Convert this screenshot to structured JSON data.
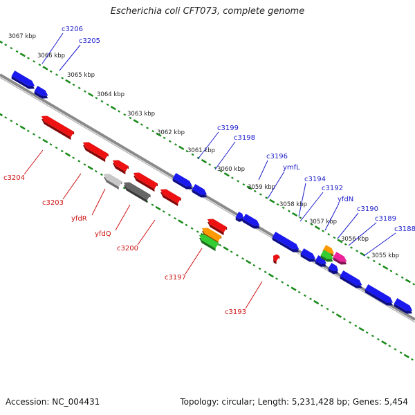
{
  "title": "Escherichia coli CFT073, complete genome",
  "accession_text": "Accession: NC_004431",
  "topology_text": "Topology: circular; Length: 5,231,428 bp; Genes: 5,454",
  "colors": {
    "forward_gene": "#1a1aee",
    "reverse_gene": "#ee1111",
    "backbone": "#8a8a8a",
    "ticks": "#1a8a1a",
    "label_forward": "#1a1acc",
    "label_reverse": "#cc1111"
  },
  "kbp_labels": [
    "3067 kbp",
    "3066 kbp",
    "3065 kbp",
    "3064 kbp",
    "3063 kbp",
    "3062 kbp",
    "3061 kbp",
    "3060 kbp",
    "3059 kbp",
    "3058 kbp",
    "3057 kbp",
    "3056 kbp",
    "3055 kbp"
  ],
  "forward_labels": [
    "c3206",
    "c3205",
    "c3199",
    "c3198",
    "c3196",
    "ymfL",
    "c3194",
    "c3192",
    "yfdN",
    "c3190",
    "c3189",
    "c3188"
  ],
  "reverse_labels": [
    "c3204",
    "c3203",
    "yfdR",
    "yfdQ",
    "c3200",
    "c3197",
    "c3193"
  ],
  "features": {
    "forward": [
      "forward-gene",
      "forward-gene",
      "forward-gene",
      "forward-gene",
      "forward-gene",
      "forward-gene",
      "forward-gene",
      "forward-gene",
      "forward-gene",
      "forward-gene",
      "forward-gene",
      "forward-gene"
    ],
    "reverse": [
      "reverse-gene",
      "reverse-gene",
      "reverse-gene",
      "reverse-gene",
      "reverse-gene",
      "reverse-gene",
      "pseudo-gene",
      "pseudo-gene",
      "reverse-gene",
      "orange-feature",
      "green-feature",
      "reverse-gene"
    ],
    "other": [
      "orange-feature",
      "green-feature",
      "pink-feature"
    ]
  }
}
